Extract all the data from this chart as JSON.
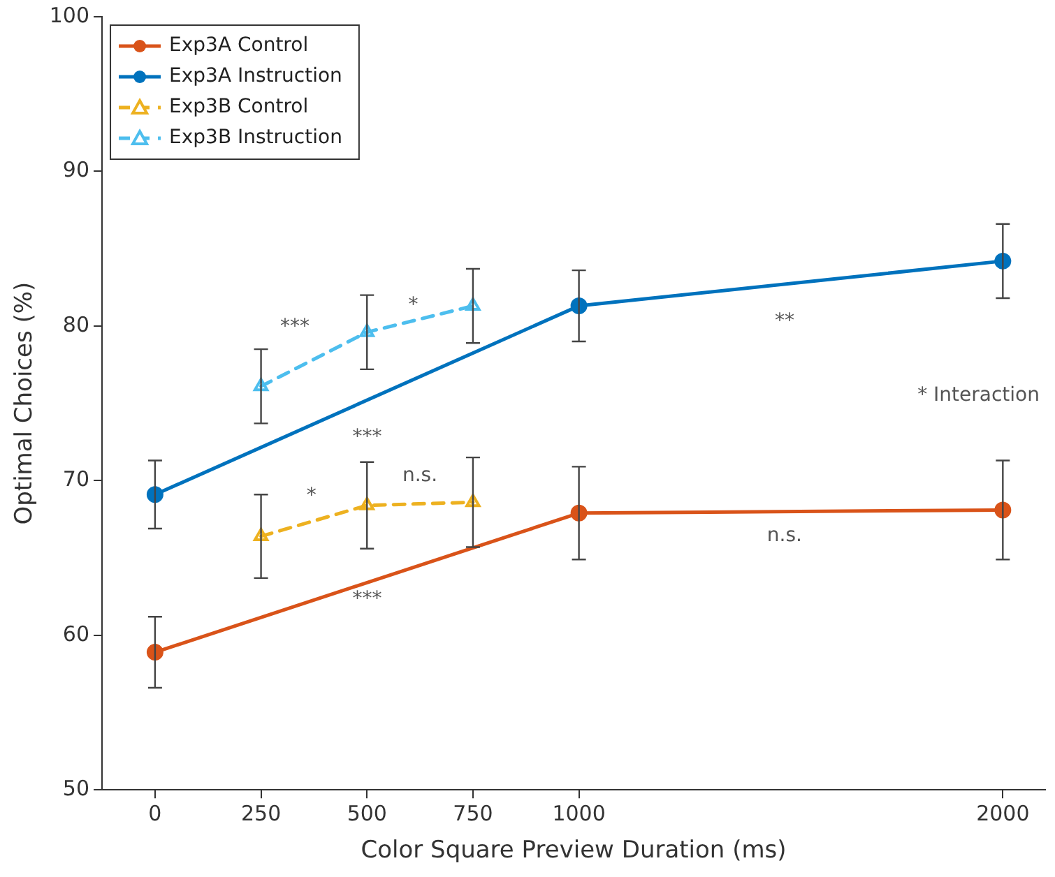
{
  "chart_data": {
    "type": "line",
    "xlabel": "Color Square Preview Duration (ms)",
    "ylabel": "Optimal Choices (%)",
    "xlim": [
      -125,
      2100
    ],
    "xticks": [
      0,
      250,
      500,
      750,
      1000,
      2000
    ],
    "ylim": [
      50,
      100
    ],
    "yticks": [
      50,
      60,
      70,
      80,
      90,
      100
    ],
    "grid": false,
    "legend": "top left",
    "series": [
      {
        "name": "Exp3A Control",
        "color": "#d95319",
        "x": [
          0,
          1000,
          2000
        ],
        "values": [
          58.9,
          67.9,
          68.1
        ],
        "errors": [
          2.3,
          3.0,
          3.2
        ],
        "marker": "circle",
        "line_style": "solid"
      },
      {
        "name": "Exp3A Instruction",
        "color": "#0072bd",
        "x": [
          0,
          1000,
          2000
        ],
        "values": [
          69.1,
          81.3,
          84.2
        ],
        "errors": [
          2.2,
          2.3,
          2.4
        ],
        "marker": "circle",
        "line_style": "solid"
      },
      {
        "name": "Exp3B Control",
        "color": "#edb120",
        "x": [
          250,
          500,
          750
        ],
        "values": [
          66.4,
          68.4,
          68.6
        ],
        "errors": [
          2.7,
          2.8,
          2.9
        ],
        "marker": "triangle",
        "line_style": "dashed"
      },
      {
        "name": "Exp3B Instruction",
        "color": "#4dbeee",
        "x": [
          250,
          500,
          750
        ],
        "values": [
          76.1,
          79.6,
          81.3
        ],
        "errors": [
          2.4,
          2.4,
          2.4
        ],
        "marker": "triangle",
        "line_style": "dashed"
      }
    ],
    "annotations": [
      "***",
      "*",
      "***",
      "n.s.",
      "*",
      "***",
      "**",
      "n.s.",
      "* Interaction"
    ]
  }
}
